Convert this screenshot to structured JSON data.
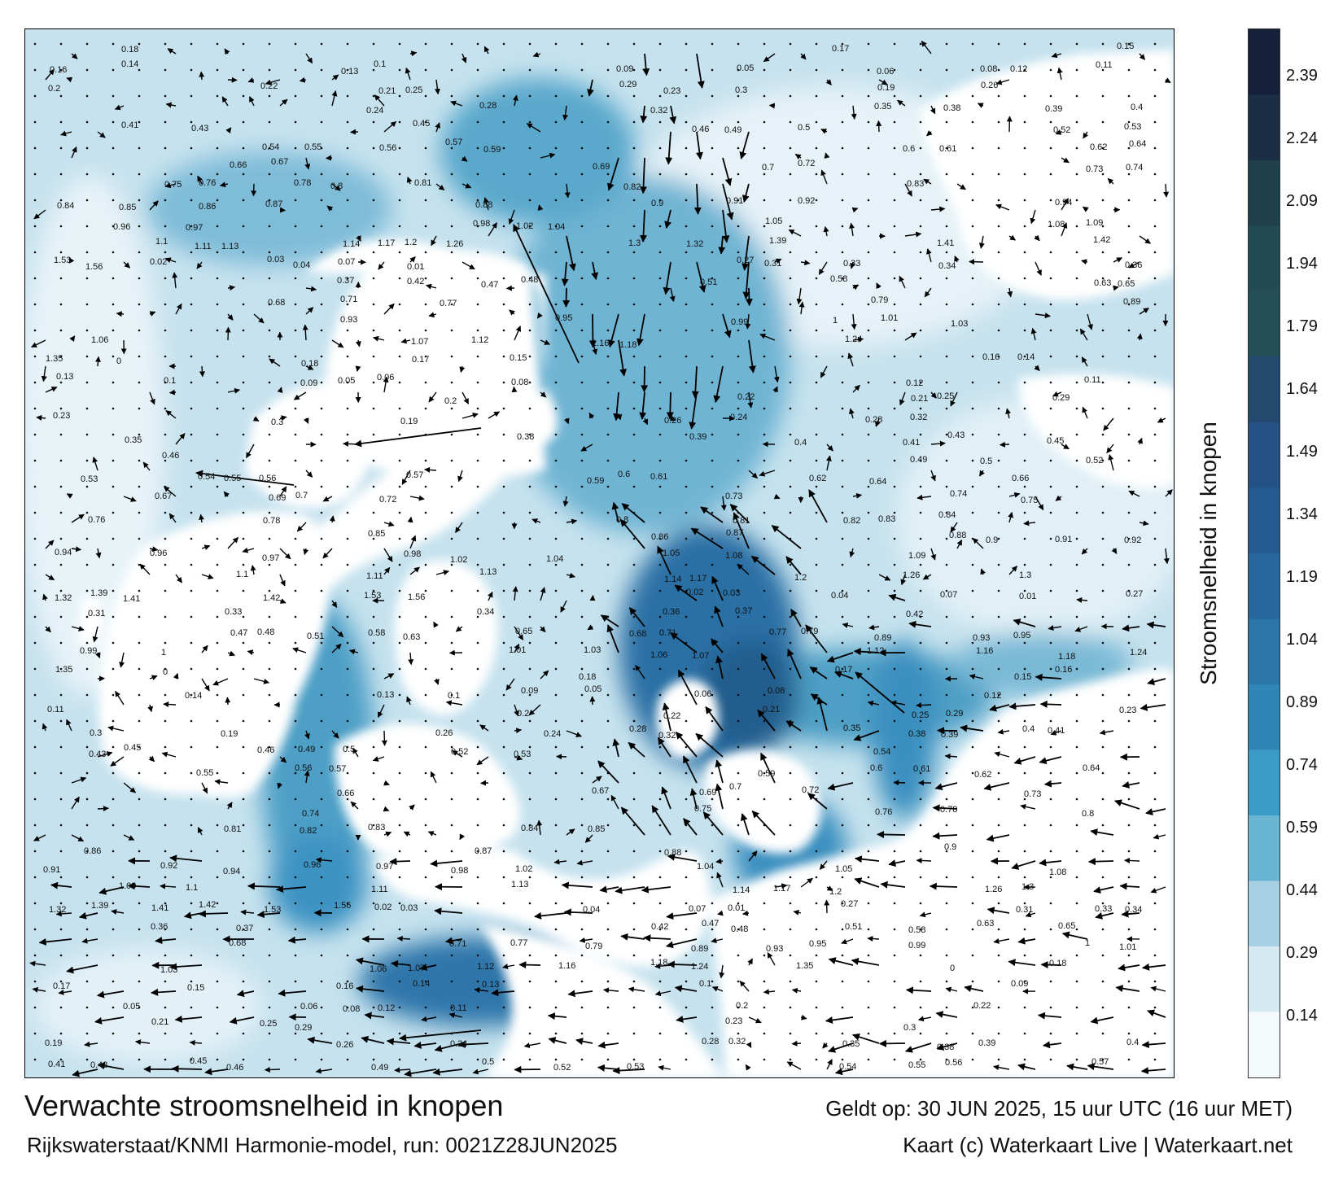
{
  "map": {
    "type": "current-speed-map",
    "region": "North Sea / English Channel",
    "land_color": "#ffffff",
    "sea_colors": [
      "#f7fbfd",
      "#c9e3ee",
      "#8fc5dc",
      "#4ea6c9",
      "#2d8dbb",
      "#2a6fa6",
      "#245a8f",
      "#1e4a6e",
      "#1d3f55",
      "#1a2d42"
    ],
    "speed_labels": [
      "0.18",
      "0.17",
      "0.15",
      "0.16",
      "0.14",
      "0.13",
      "0.1",
      "0.09",
      "0.05",
      "0.06",
      "0.08",
      "0.12",
      "0.11",
      "0.2",
      "0.22",
      "0.21",
      "0.25",
      "0.29",
      "0.23",
      "0.3",
      "0.19",
      "0.26",
      "0.24",
      "0.28",
      "0.32",
      "0.35",
      "0.38",
      "0.39",
      "0.4",
      "0.41",
      "0.43",
      "0.45",
      "0.46",
      "0.49",
      "0.5",
      "0.52",
      "0.53",
      "0.54",
      "0.55",
      "0.56",
      "0.57",
      "0.59",
      "0.6",
      "0.61",
      "0.62",
      "0.64",
      "0.66",
      "0.67",
      "0.69",
      "0.7",
      "0.72",
      "0.73",
      "0.74",
      "0.75",
      "0.76",
      "0.78",
      "0.8",
      "0.81",
      "0.82",
      "0.83",
      "0.84",
      "0.85",
      "0.86",
      "0.87",
      "0.88",
      "0.9",
      "0.91",
      "0.92",
      "0.94",
      "0.96",
      "0.97",
      "0.98",
      "1.02",
      "1.04",
      "1.05",
      "1.08",
      "1.09",
      "1.1",
      "1.11",
      "1.13",
      "1.14",
      "1.17",
      "1.2",
      "1.26",
      "1.3",
      "1.32",
      "1.39",
      "1.41",
      "1.42",
      "1.53",
      "1.56",
      "0.02",
      "0.03",
      "0.04",
      "0.07",
      "0.01",
      "0.27",
      "0.31",
      "0.33",
      "0.34",
      "0.36",
      "0.37",
      "0.42",
      "0.47",
      "0.48",
      "0.51",
      "0.58",
      "0.63",
      "0.65",
      "0.68",
      "0.71",
      "0.77",
      "0.79",
      "0.89",
      "0.93",
      "0.95",
      "0.99",
      "1",
      "1.01",
      "1.03",
      "1.06",
      "1.07",
      "1.12",
      "1.16",
      "1.18",
      "1.24",
      "1.35",
      "0"
    ]
  },
  "colorbar": {
    "title": "Stroomsnelheid in knopen",
    "ticks": [
      "0.14",
      "0.29",
      "0.44",
      "0.59",
      "0.74",
      "0.89",
      "1.04",
      "1.19",
      "1.34",
      "1.49",
      "1.64",
      "1.79",
      "1.94",
      "2.09",
      "2.24",
      "2.39"
    ],
    "colors": [
      "#f4f9fb",
      "#d5e9f1",
      "#a7d1e3",
      "#68b5d3",
      "#3a9cc6",
      "#2f86b6",
      "#2b76a9",
      "#27679d",
      "#255b8f",
      "#245183",
      "#24496f",
      "#234f58",
      "#234a55",
      "#1f3f4b",
      "#1c2e45",
      "#16203a"
    ]
  },
  "footer": {
    "title": "Verwachte stroomsnelheid in knopen",
    "model_run": "Rijkswaterstaat/KNMI Harmonie-model, run: 0021Z28JUN2025",
    "valid_time": "Geldt op: 30 JUN 2025, 15 uur UTC (16 uur MET)",
    "credit": "Kaart (c) Waterkaart Live | Waterkaart.net"
  }
}
